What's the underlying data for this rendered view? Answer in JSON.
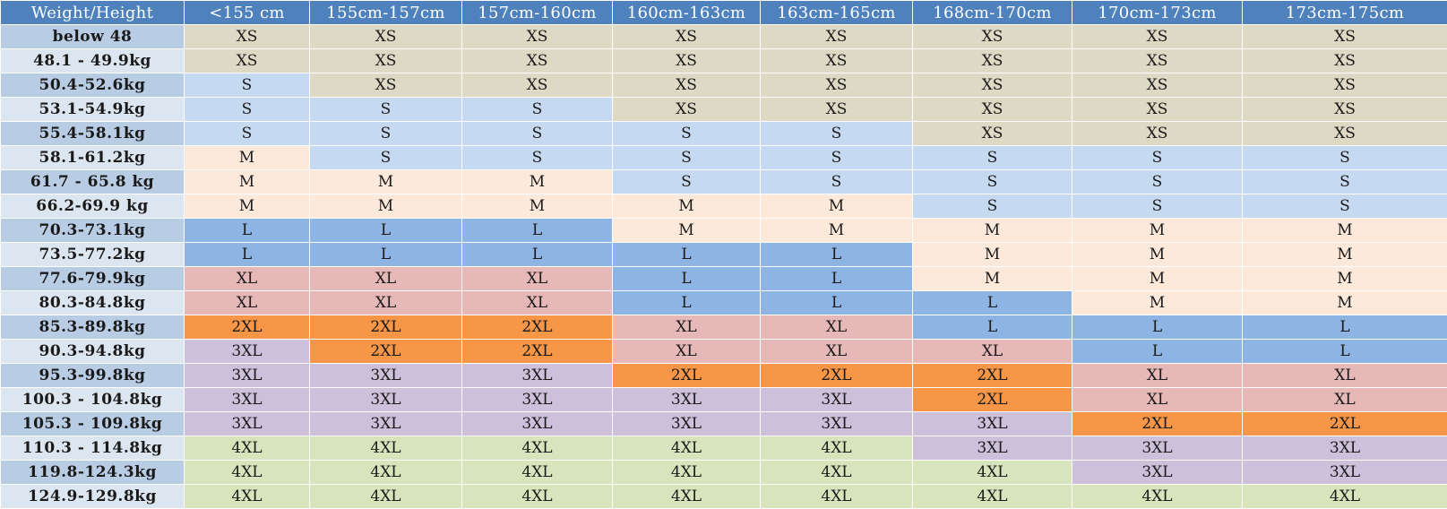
{
  "header": {
    "corner": "Weight/Height",
    "heights": [
      "<155 cm",
      "155cm-157cm",
      "157cm-160cm",
      "160cm-163cm",
      "163cm-165cm",
      "168cm-170cm",
      "170cm-173cm",
      "173cm-175cm"
    ]
  },
  "size_colors": {
    "XS": "#ddd9c4",
    "S": "#c5d9f1",
    "M": "#fde9d9",
    "L": "#8db4e2",
    "XL": "#e6b8b7",
    "2XL": "#f79646",
    "3XL": "#ccc0da",
    "4XL": "#d8e4bc"
  },
  "header_color": "#4f81bd",
  "rows": [
    {
      "weight": "below 48",
      "sizes": [
        "XS",
        "XS",
        "XS",
        "XS",
        "XS",
        "XS",
        "XS",
        "XS"
      ]
    },
    {
      "weight": "48.1 - 49.9kg",
      "sizes": [
        "XS",
        "XS",
        "XS",
        "XS",
        "XS",
        "XS",
        "XS",
        "XS"
      ]
    },
    {
      "weight": "50.4-52.6kg",
      "sizes": [
        "S",
        "XS",
        "XS",
        "XS",
        "XS",
        "XS",
        "XS",
        "XS"
      ]
    },
    {
      "weight": "53.1-54.9kg",
      "sizes": [
        "S",
        "S",
        "S",
        "XS",
        "XS",
        "XS",
        "XS",
        "XS"
      ]
    },
    {
      "weight": "55.4-58.1kg",
      "sizes": [
        "S",
        "S",
        "S",
        "S",
        "S",
        "XS",
        "XS",
        "XS"
      ]
    },
    {
      "weight": "58.1-61.2kg",
      "sizes": [
        "M",
        "S",
        "S",
        "S",
        "S",
        "S",
        "S",
        "S"
      ]
    },
    {
      "weight": "61.7 - 65.8 kg",
      "sizes": [
        "M",
        "M",
        "M",
        "S",
        "S",
        "S",
        "S",
        "S"
      ]
    },
    {
      "weight": "66.2-69.9 kg",
      "sizes": [
        "M",
        "M",
        "M",
        "M",
        "M",
        "S",
        "S",
        "S"
      ]
    },
    {
      "weight": "70.3-73.1kg",
      "sizes": [
        "L",
        "L",
        "L",
        "M",
        "M",
        "M",
        "M",
        "M"
      ]
    },
    {
      "weight": "73.5-77.2kg",
      "sizes": [
        "L",
        "L",
        "L",
        "L",
        "L",
        "M",
        "M",
        "M"
      ]
    },
    {
      "weight": "77.6-79.9kg",
      "sizes": [
        "XL",
        "XL",
        "XL",
        "L",
        "L",
        "M",
        "M",
        "M"
      ]
    },
    {
      "weight": "80.3-84.8kg",
      "sizes": [
        "XL",
        "XL",
        "XL",
        "L",
        "L",
        "L",
        "M",
        "M"
      ]
    },
    {
      "weight": "85.3-89.8kg",
      "sizes": [
        "2XL",
        "2XL",
        "2XL",
        "XL",
        "XL",
        "L",
        "L",
        "L"
      ]
    },
    {
      "weight": "90.3-94.8kg",
      "sizes": [
        "3XL",
        "2XL",
        "2XL",
        "XL",
        "XL",
        "XL",
        "L",
        "L"
      ]
    },
    {
      "weight": "95.3-99.8kg",
      "sizes": [
        "3XL",
        "3XL",
        "3XL",
        "2XL",
        "2XL",
        "2XL",
        "XL",
        "XL"
      ]
    },
    {
      "weight": "100.3 - 104.8kg",
      "sizes": [
        "3XL",
        "3XL",
        "3XL",
        "3XL",
        "3XL",
        "2XL",
        "XL",
        "XL"
      ]
    },
    {
      "weight": "105.3 - 109.8kg",
      "sizes": [
        "3XL",
        "3XL",
        "3XL",
        "3XL",
        "3XL",
        "3XL",
        "2XL",
        "2XL"
      ]
    },
    {
      "weight": "110.3 - 114.8kg",
      "sizes": [
        "4XL",
        "4XL",
        "4XL",
        "4XL",
        "4XL",
        "3XL",
        "3XL",
        "3XL"
      ]
    },
    {
      "weight": "119.8-124.3kg",
      "sizes": [
        "4XL",
        "4XL",
        "4XL",
        "4XL",
        "4XL",
        "4XL",
        "3XL",
        "3XL"
      ]
    },
    {
      "weight": "124.9-129.8kg",
      "sizes": [
        "4XL",
        "4XL",
        "4XL",
        "4XL",
        "4XL",
        "4XL",
        "4XL",
        "4XL"
      ]
    }
  ]
}
